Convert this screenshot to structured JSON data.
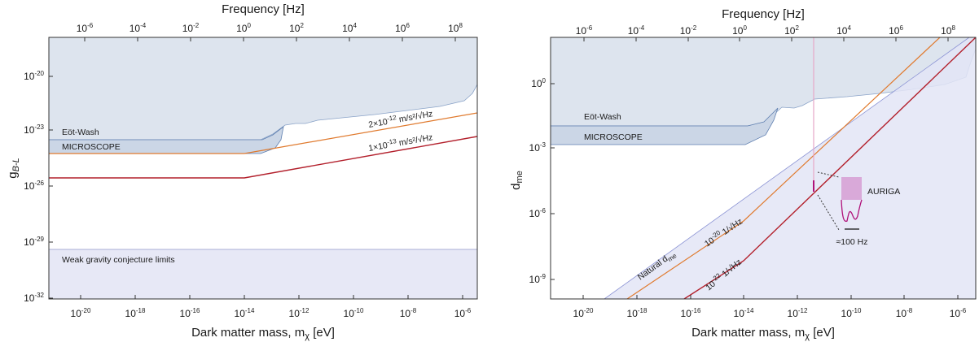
{
  "chart_data": [
    {
      "type": "line",
      "panel": "left",
      "top_axis": {
        "label": "Frequency [Hz]",
        "ticks": [
          {
            "base": "10",
            "exp": "-6"
          },
          {
            "base": "10",
            "exp": "-4"
          },
          {
            "base": "10",
            "exp": "-2"
          },
          {
            "base": "10",
            "exp": "0"
          },
          {
            "base": "10",
            "exp": "2"
          },
          {
            "base": "10",
            "exp": "4"
          },
          {
            "base": "10",
            "exp": "6"
          },
          {
            "base": "10",
            "exp": "8"
          }
        ]
      },
      "xlabel": {
        "text": "Dark matter mass, m",
        "sub": "χ",
        "unit": " [eV]"
      },
      "ylabel": {
        "text": "g",
        "sub": "B-L"
      },
      "x_scale": "log",
      "y_scale": "log",
      "xlim_log10_eV": [
        -21.8,
        -5.7
      ],
      "ylim_log10": [
        -32,
        -18.2
      ],
      "x_ticks": [
        {
          "base": "10",
          "exp": "-20"
        },
        {
          "base": "10",
          "exp": "-18"
        },
        {
          "base": "10",
          "exp": "-16"
        },
        {
          "base": "10",
          "exp": "-14"
        },
        {
          "base": "10",
          "exp": "-12"
        },
        {
          "base": "10",
          "exp": "-10"
        },
        {
          "base": "10",
          "exp": "-8"
        },
        {
          "base": "10",
          "exp": "-6"
        }
      ],
      "y_ticks": [
        {
          "base": "10",
          "exp": "-20"
        },
        {
          "base": "10",
          "exp": "-23"
        },
        {
          "base": "10",
          "exp": "-26"
        },
        {
          "base": "10",
          "exp": "-29"
        },
        {
          "base": "10",
          "exp": "-32"
        }
      ],
      "labels": {
        "eot_wash": "Eöt-Wash",
        "microscope": "MICROSCOPE",
        "weak_gravity": "Weak gravity conjecture limits",
        "sens1_base": "2×10",
        "sens1_exp": "-12",
        "sens1_unit": " m/s²/√Hz",
        "sens2_base": "1×10",
        "sens2_exp": "-13",
        "sens2_unit": " m/s²/√Hz"
      },
      "series": [
        {
          "id": "eotwash_upper_edge",
          "log10_x": [
            -21.8,
            -14.8,
            -14.2,
            -13.6,
            -13.2,
            -12.8,
            -12.4,
            -12.0,
            -11.5,
            -11.0,
            -10.0,
            -9.0,
            -8.0,
            -7.0,
            -6.2,
            -5.9,
            -5.7
          ],
          "log10_y": [
            -24.0,
            -24.0,
            -23.9,
            -23.5,
            -23.0,
            -22.9,
            -23.0,
            -22.9,
            -22.8,
            -22.7,
            -22.5,
            -22.3,
            -22.1,
            -21.9,
            -21.7,
            -21.4,
            -20.8
          ]
        },
        {
          "id": "microscope_upper_edge",
          "log10_x": [
            -21.8,
            -14.0
          ],
          "log10_y": [
            -24.0,
            -24.0
          ]
        },
        {
          "id": "microscope_lower_edge",
          "log10_x": [
            -21.8,
            -14.2,
            -13.8,
            -13.4,
            -13.0
          ],
          "log10_y": [
            -24.8,
            -24.8,
            -24.6,
            -24.0,
            -23.4
          ]
        },
        {
          "id": "sens_2e-12",
          "log10_x": [
            -21.8,
            -14.0,
            -5.7
          ],
          "log10_y": [
            -24.8,
            -24.8,
            -22.2
          ]
        },
        {
          "id": "sens_1e-13",
          "log10_x": [
            -21.8,
            -14.0,
            -5.7
          ],
          "log10_y": [
            -26.1,
            -26.1,
            -23.5
          ]
        },
        {
          "id": "weak_gravity_top",
          "log10_x": [
            -21.8,
            -5.7
          ],
          "log10_y": [
            -29.9,
            -29.9
          ]
        }
      ]
    },
    {
      "type": "line",
      "panel": "right",
      "top_axis": {
        "label": "Frequency [Hz]",
        "ticks": [
          {
            "base": "10",
            "exp": "-6"
          },
          {
            "base": "10",
            "exp": "-4"
          },
          {
            "base": "10",
            "exp": "-2"
          },
          {
            "base": "10",
            "exp": "0"
          },
          {
            "base": "10",
            "exp": "2"
          },
          {
            "base": "10",
            "exp": "4"
          },
          {
            "base": "10",
            "exp": "6"
          },
          {
            "base": "10",
            "exp": "8"
          }
        ]
      },
      "xlabel": {
        "text": "Dark matter mass, m",
        "sub": "χ",
        "unit": " [eV]"
      },
      "ylabel": {
        "text": "d",
        "sub": "me"
      },
      "x_scale": "log",
      "y_scale": "log",
      "xlim_log10_eV": [
        -21.8,
        -5.7
      ],
      "ylim_log10": [
        -10.2,
        2.1
      ],
      "x_ticks": [
        {
          "base": "10",
          "exp": "-20"
        },
        {
          "base": "10",
          "exp": "-18"
        },
        {
          "base": "10",
          "exp": "-16"
        },
        {
          "base": "10",
          "exp": "-14"
        },
        {
          "base": "10",
          "exp": "-12"
        },
        {
          "base": "10",
          "exp": "-10"
        },
        {
          "base": "10",
          "exp": "-8"
        },
        {
          "base": "10",
          "exp": "-6"
        }
      ],
      "y_ticks": [
        {
          "base": "10",
          "exp": "0"
        },
        {
          "base": "10",
          "exp": "-3"
        },
        {
          "base": "10",
          "exp": "-6"
        },
        {
          "base": "10",
          "exp": "-9"
        }
      ],
      "labels": {
        "eot_wash": "Eöt-Wash",
        "microscope": "MICROSCOPE",
        "auriga": "AURIGA",
        "hz100": "≈100 Hz",
        "natural": "Natural d",
        "natural_sub": "me",
        "sens1_base": "10",
        "sens1_exp": "-20",
        "sens1_unit": " 1/√Hz",
        "sens2_base": "10",
        "sens2_exp": "-22",
        "sens2_unit": " 1/√Hz"
      },
      "series": [
        {
          "id": "eotwash_upper_edge",
          "log10_x": [
            -21.8,
            -14.2,
            -13.6,
            -13.2,
            -12.8,
            -12.4,
            -12.2,
            -11.8,
            -11.4,
            -11.0,
            -10.0,
            -9.0,
            -8.0,
            -7.0,
            -6.3,
            -5.9,
            -5.7
          ],
          "log10_y": [
            -2.0,
            -2.0,
            -1.8,
            -1.2,
            -1.0,
            -0.95,
            -1.0,
            -0.9,
            -0.8,
            -0.7,
            -0.6,
            -0.4,
            -0.2,
            0.0,
            0.4,
            0.9,
            1.6
          ]
        },
        {
          "id": "microscope_lower_edge",
          "log10_x": [
            -21.8,
            -14.0,
            -13.4,
            -13.0,
            -12.8
          ],
          "log10_y": [
            -3.2,
            -3.2,
            -3.0,
            -2.3,
            -1.5
          ]
        },
        {
          "id": "natural_dme",
          "log10_x": [
            -18.8,
            -5.7
          ],
          "log10_y": [
            -10.2,
            2.1
          ]
        },
        {
          "id": "sens_1e-20",
          "log10_x": [
            -17.9,
            -13.9,
            -6.9
          ],
          "log10_y": [
            -10.2,
            -6.7,
            2.1
          ]
        },
        {
          "id": "sens_1e-22",
          "log10_x": [
            -15.9,
            -13.9,
            -5.7
          ],
          "log10_y": [
            -10.2,
            -8.6,
            2.1
          ]
        },
        {
          "id": "auriga_vertical",
          "log10_x": [
            -11.7,
            -11.7
          ],
          "log10_y": [
            2.1,
            -4.7
          ]
        }
      ]
    }
  ]
}
